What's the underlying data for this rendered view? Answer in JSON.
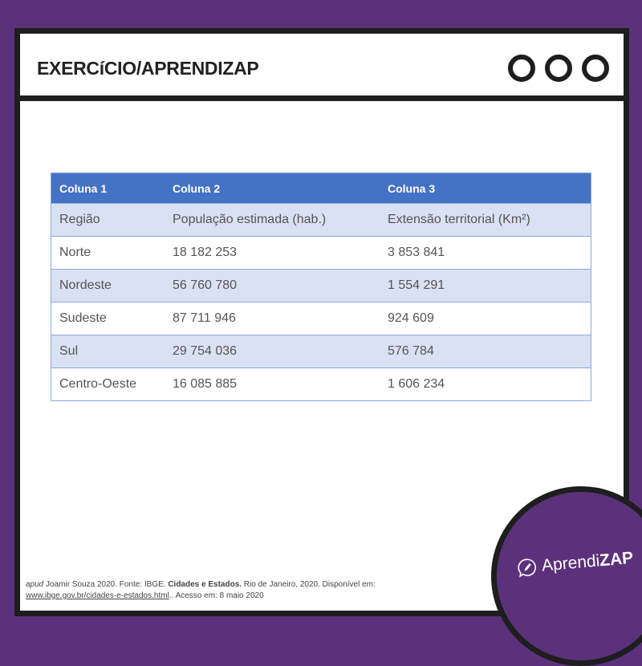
{
  "header": {
    "title": "EXERCíCIO/APRENDIZAP",
    "window_controls": [
      "circle",
      "circle",
      "circle"
    ]
  },
  "table": {
    "columns": [
      "Coluna 1",
      "Coluna 2",
      "Coluna 3"
    ],
    "rows": [
      [
        "Região",
        "População estimada (hab.)",
        "Extensão territorial (Km²)"
      ],
      [
        "Norte",
        "18 182 253",
        "3 853 841"
      ],
      [
        "Nordeste",
        "56 760 780",
        "1 554 291"
      ],
      [
        "Sudeste",
        "87 711 946",
        "924 609"
      ],
      [
        "Sul",
        "29 754 036",
        "576 784"
      ],
      [
        "Centro-Oeste",
        "16 085 885",
        "1 606 234"
      ]
    ]
  },
  "footer": {
    "apud": "apud",
    "text1": " Joamir Souza 2020. Fonte: IBGE. ",
    "bold": "Cidades e Estados.",
    "text2": " Rio de Janeiro, 2020. Disponível em:",
    "link": "www.ibge.gov.br/cidades-e-estados.html",
    "text3": ".. Acesso em: 8 maio 2020"
  },
  "logo": {
    "part1": "Aprendi",
    "part2": "ZAP",
    "icon": "pencil-speech-bubble-icon"
  },
  "colors": {
    "background": "#5c317c",
    "table_header": "#4472c4",
    "table_alt_row": "#d9e1f2"
  }
}
